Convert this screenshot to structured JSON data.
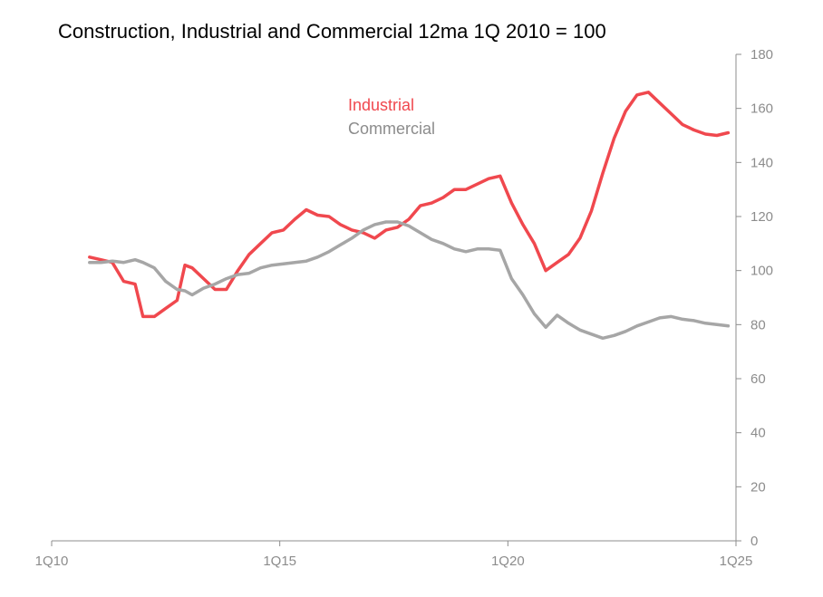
{
  "chart_data": {
    "type": "line",
    "title": "Construction, Industrial and Commercial 12ma 1Q 2010 = 100",
    "xlabel": "",
    "ylabel": "",
    "x_ticks": [
      "1Q10",
      "1Q15",
      "1Q20",
      "1Q25"
    ],
    "xlim": [
      2010.0,
      2025.0
    ],
    "ylim": [
      0,
      180
    ],
    "y_ticks": [
      0,
      20,
      40,
      60,
      80,
      100,
      120,
      140,
      160,
      180
    ],
    "y_axis_side": "right",
    "grid": false,
    "legend_placement": "top-center",
    "x": [
      2010.83,
      2011.08,
      2011.33,
      2011.58,
      2011.83,
      2012.0,
      2012.25,
      2012.5,
      2012.75,
      2012.92,
      2013.08,
      2013.33,
      2013.58,
      2013.83,
      2014.08,
      2014.33,
      2014.58,
      2014.83,
      2015.08,
      2015.33,
      2015.58,
      2015.83,
      2016.08,
      2016.33,
      2016.58,
      2016.83,
      2017.08,
      2017.33,
      2017.58,
      2017.83,
      2018.08,
      2018.33,
      2018.58,
      2018.83,
      2019.08,
      2019.33,
      2019.58,
      2019.83,
      2020.08,
      2020.33,
      2020.58,
      2020.83,
      2021.08,
      2021.33,
      2021.58,
      2021.83,
      2022.08,
      2022.33,
      2022.58,
      2022.83,
      2023.08,
      2023.33,
      2023.58,
      2023.83,
      2024.08,
      2024.33,
      2024.58,
      2024.83
    ],
    "series": [
      {
        "name": "Industrial",
        "color": "#f0484e",
        "values": [
          105,
          104,
          103,
          96,
          95,
          83,
          83,
          86,
          89,
          102,
          101,
          97,
          93,
          93,
          100,
          106,
          110,
          114,
          115,
          119,
          122.5,
          120.5,
          120,
          117,
          115,
          114,
          112,
          115,
          116,
          119,
          124,
          125,
          127,
          130,
          130,
          132,
          134,
          135,
          125,
          117,
          110,
          100,
          103,
          106,
          112,
          122,
          136,
          149,
          159,
          165,
          166,
          162,
          158,
          154,
          152,
          150.5,
          150,
          151
        ]
      },
      {
        "name": "Commercial",
        "color": "#a6a6a6",
        "values": [
          103,
          103,
          103.5,
          103,
          104,
          103,
          101,
          96,
          93,
          92.5,
          91,
          93.5,
          95,
          97,
          98.5,
          99,
          101,
          102,
          102.5,
          103,
          103.5,
          105,
          107,
          109.5,
          112,
          115,
          117,
          118,
          118,
          116.5,
          114,
          111.5,
          110,
          108,
          107,
          108,
          108,
          107.5,
          97,
          91,
          84,
          79,
          83.5,
          80.5,
          78,
          76.5,
          75,
          76,
          77.5,
          79.5,
          81,
          82.5,
          83,
          82,
          81.5,
          80.5,
          80,
          79.5
        ]
      }
    ]
  }
}
